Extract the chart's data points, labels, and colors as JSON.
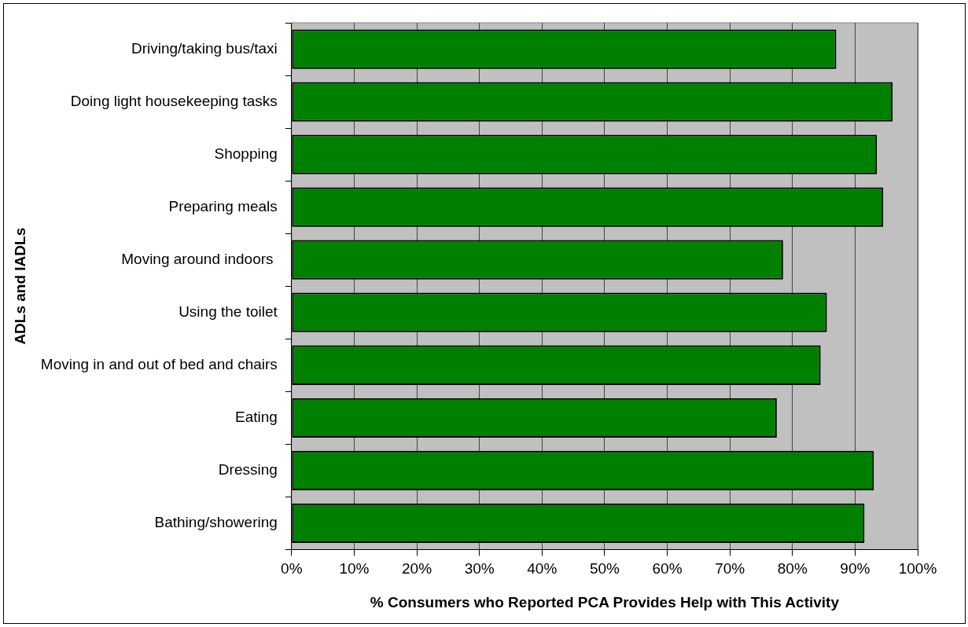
{
  "chart_data": {
    "type": "bar",
    "orientation": "horizontal",
    "xlabel": "% Consumers who Reported PCA Provides Help with This Activity",
    "ylabel": "ADLs and IADLs",
    "categories": [
      "Driving/taking bus/taxi",
      "Doing light housekeeping tasks",
      "Shopping",
      "Preparing meals",
      "Moving around indoors ",
      "Using the toilet",
      "Moving in and out of bed and chairs",
      "Eating",
      "Dressing",
      "Bathing/showering"
    ],
    "values": [
      87,
      96,
      93.5,
      94.5,
      78.5,
      85.5,
      84.5,
      77.5,
      93,
      91.5
    ],
    "color": "#008000",
    "xlim": [
      0,
      100
    ],
    "xticks": [
      {
        "value": 0,
        "label": "0%"
      },
      {
        "value": 10,
        "label": "10%"
      },
      {
        "value": 20,
        "label": "20%"
      },
      {
        "value": 30,
        "label": "30%"
      },
      {
        "value": 40,
        "label": "40%"
      },
      {
        "value": 50,
        "label": "50%"
      },
      {
        "value": 60,
        "label": "60%"
      },
      {
        "value": 70,
        "label": "70%"
      },
      {
        "value": 80,
        "label": "80%"
      },
      {
        "value": 90,
        "label": "90%"
      },
      {
        "value": 100,
        "label": "100%"
      }
    ],
    "grid": "x"
  }
}
